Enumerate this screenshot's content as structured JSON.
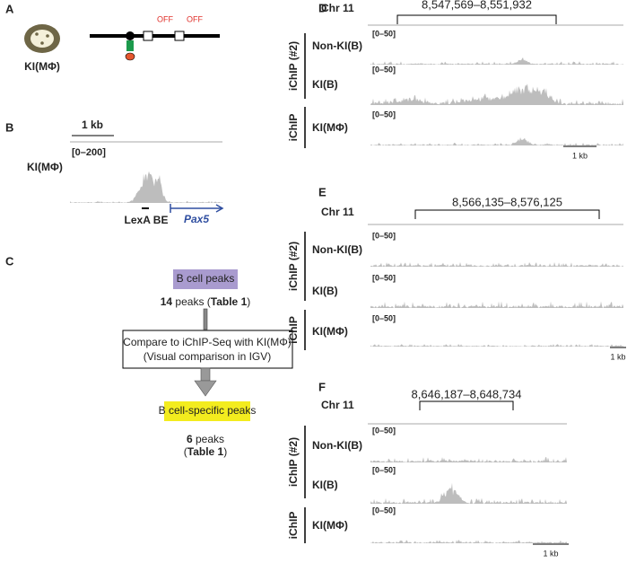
{
  "panels": {
    "a": {
      "label": "A",
      "cell_label": "KI(MΦ)",
      "off_labels": [
        "OFF",
        "OFF"
      ]
    },
    "b": {
      "label": "B",
      "scale": "1 kb",
      "range": "[0–200]",
      "track": "KI(MΦ)",
      "element": "LexA BE",
      "gene": "Pax5"
    },
    "c": {
      "label": "C",
      "start": "B cell peaks",
      "start_count": [
        "14",
        " peaks (",
        "Table 1",
        ")"
      ],
      "compare": [
        "Compare to iChIP-Seq with KI(MΦ)",
        "(Visual comparison in IGV)"
      ],
      "end": "B cell-specific peaks",
      "end_count": [
        [
          "6",
          " peaks"
        ],
        [
          "(",
          "Table 1",
          ")"
        ]
      ]
    },
    "d": {
      "label": "D",
      "chromosome": "Chr 11",
      "coordinates": "8,547,569–8,551,932",
      "groups": [
        "iChIP (#2)",
        "iChIP"
      ],
      "tracks": [
        {
          "range": "[0–50]",
          "name": "Non-KI(B)"
        },
        {
          "range": "[0–50]",
          "name": "KI(B)"
        },
        {
          "range": "[0–50]",
          "name": "KI(MΦ)"
        }
      ],
      "scale": "1 kb"
    },
    "e": {
      "label": "E",
      "chromosome": "Chr 11",
      "coordinates": "8,566,135–8,576,125",
      "groups": [
        "iChIP (#2)",
        "iChIP"
      ],
      "tracks": [
        {
          "range": "[0–50]",
          "name": "Non-KI(B)"
        },
        {
          "range": "[0–50]",
          "name": "KI(B)"
        },
        {
          "range": "[0–50]",
          "name": "KI(MΦ)"
        }
      ],
      "scale": "1 kb"
    },
    "f": {
      "label": "F",
      "chromosome": "Chr 11",
      "coordinates": "8,646,187–8,648,734",
      "groups": [
        "iChIP (#2)",
        "iChIP"
      ],
      "tracks": [
        {
          "range": "[0–50]",
          "name": "Non-KI(B)"
        },
        {
          "range": "[0–50]",
          "name": "KI(B)"
        },
        {
          "range": "[0–50]",
          "name": "KI(MΦ)"
        }
      ],
      "scale": "1 kb"
    }
  }
}
